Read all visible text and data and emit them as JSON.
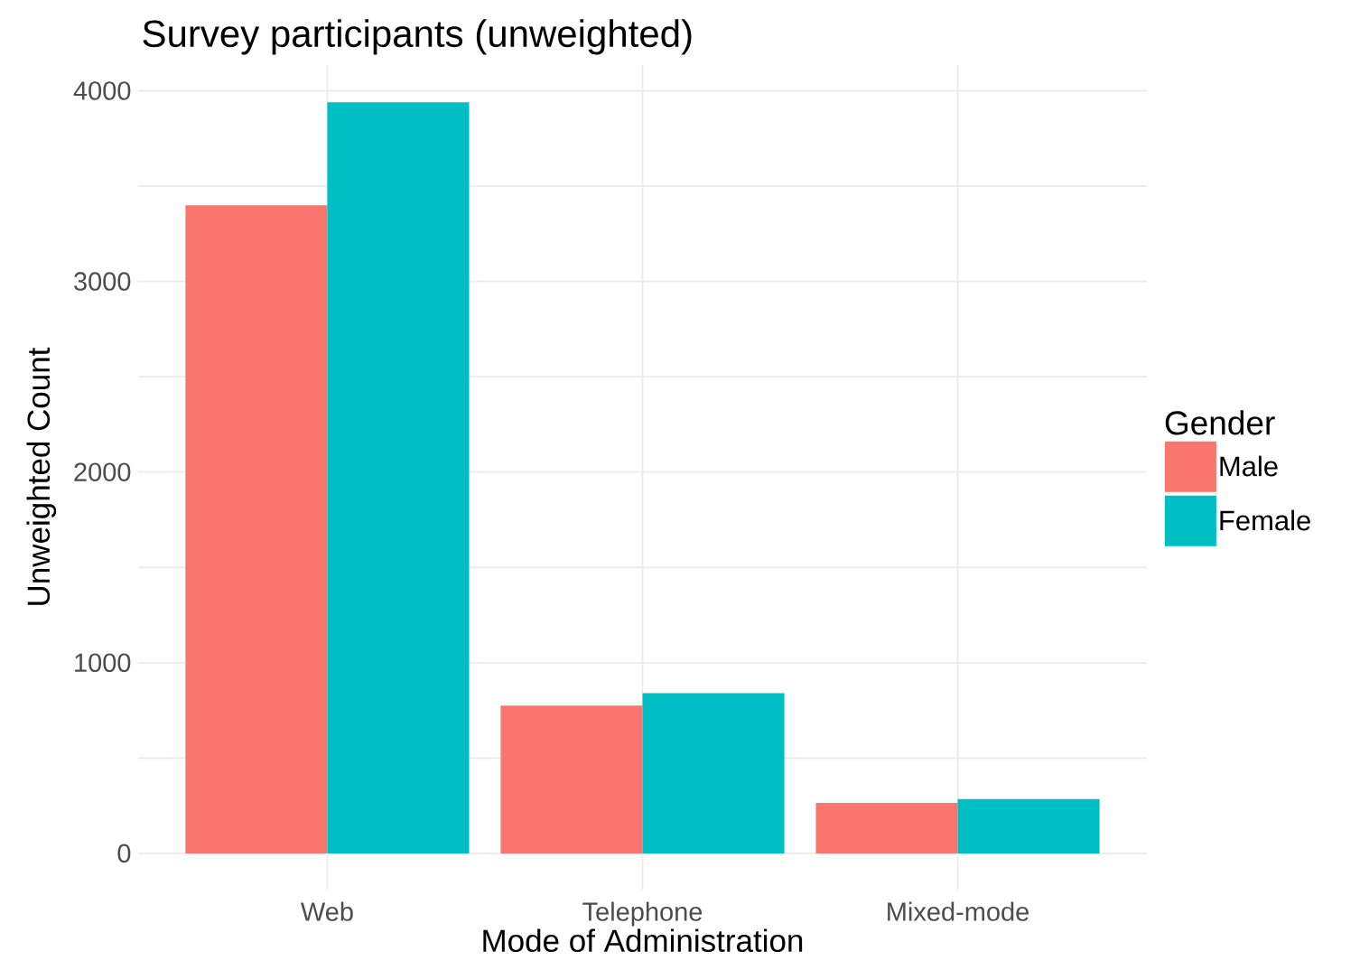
{
  "chart_data": {
    "type": "bar",
    "title": "Survey participants (unweighted)",
    "xlabel": "Mode of Administration",
    "ylabel": "Unweighted Count",
    "legend_title": "Gender",
    "categories": [
      "Web",
      "Telephone",
      "Mixed-mode"
    ],
    "series": [
      {
        "name": "Male",
        "color": "#f8766d",
        "values": [
          3400,
          775,
          265
        ]
      },
      {
        "name": "Female",
        "color": "#00bfc4",
        "values": [
          3940,
          840,
          285
        ]
      }
    ],
    "ylim": [
      -190,
      4135
    ],
    "yticks": [
      0,
      {
        "value": 500,
        "label": null
      },
      1000,
      {
        "value": 1500,
        "label": null
      },
      2000,
      {
        "value": 2500,
        "label": null
      },
      3000,
      {
        "value": 3500,
        "label": null
      },
      4000
    ],
    "grid": true,
    "legend": "right"
  }
}
